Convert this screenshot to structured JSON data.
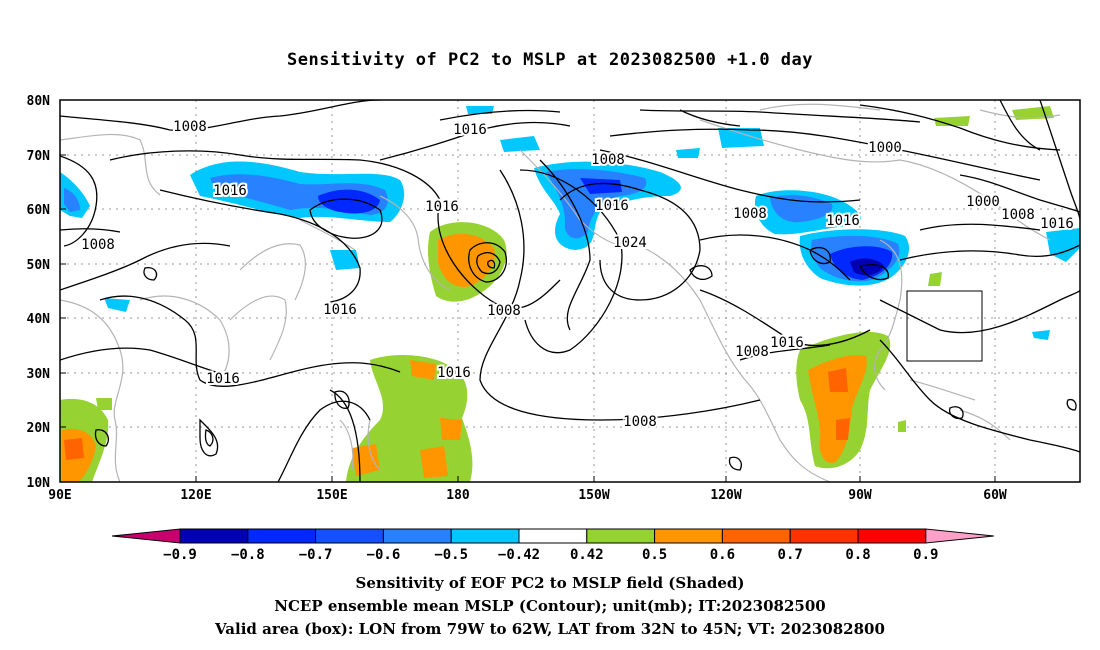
{
  "title": "Sensitivity of PC2 to MSLP at 2023082500 +1.0 day",
  "map": {
    "lat_labels": [
      "80N",
      "70N",
      "60N",
      "50N",
      "40N",
      "30N",
      "20N",
      "10N"
    ],
    "lon_labels": [
      "90E",
      "120E",
      "150E",
      "180",
      "150W",
      "120W",
      "90W",
      "60W"
    ],
    "contour_labels": [
      {
        "text": "1008"
      },
      {
        "text": "1016"
      },
      {
        "text": "1016"
      },
      {
        "text": "1008"
      },
      {
        "text": "1016"
      },
      {
        "text": "1008"
      },
      {
        "text": "1016"
      },
      {
        "text": "1024"
      },
      {
        "text": "1008"
      },
      {
        "text": "1000"
      },
      {
        "text": "1000"
      },
      {
        "text": "1008"
      },
      {
        "text": "1016"
      },
      {
        "text": "1016"
      },
      {
        "text": "1008"
      },
      {
        "text": "1016"
      },
      {
        "text": "1016"
      },
      {
        "text": "1008"
      },
      {
        "text": "1016"
      },
      {
        "text": "1016"
      },
      {
        "text": "1008"
      }
    ],
    "valid_box": {
      "lon_min": -79,
      "lon_max": -62,
      "lat_min": 32,
      "lat_max": 45
    }
  },
  "colorbar": {
    "colors": [
      "#c8006e",
      "#0000b4",
      "#0028ff",
      "#1450ff",
      "#2882ff",
      "#00c8ff",
      "#ffffff",
      "#96d232",
      "#ff9600",
      "#ff6400",
      "#ff3200",
      "#ff0000",
      "#ffa0c8"
    ],
    "labels": [
      "−0.9",
      "−0.8",
      "−0.7",
      "−0.6",
      "−0.5",
      "−0.42",
      "0.42",
      "0.5",
      "0.6",
      "0.7",
      "0.8",
      "0.9"
    ]
  },
  "captions": {
    "line1": "Sensitivity of EOF PC2 to MSLP field (Shaded)",
    "line2": "NCEP ensemble mean MSLP (Contour); unit(mb); IT:2023082500",
    "line3": "Valid area (box): LON from 79W to 62W, LAT from 32N to 45N; VT: 2023082800"
  }
}
